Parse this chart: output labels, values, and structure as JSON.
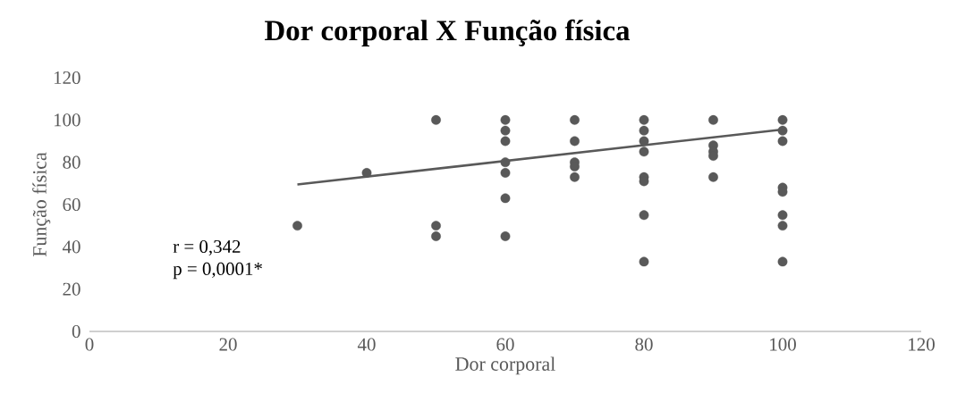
{
  "chart_data": {
    "type": "scatter",
    "title": "Dor corporal X Função física",
    "xlabel": "Dor corporal",
    "ylabel": "Função física",
    "xlim": [
      0,
      120
    ],
    "xticks": [
      0,
      20,
      40,
      60,
      80,
      100,
      120
    ],
    "ylim": [
      0,
      120
    ],
    "yticks": [
      0,
      20,
      40,
      60,
      80,
      100,
      120
    ],
    "grid": false,
    "annotations": [
      "r = 0,342",
      "p = 0,0001*"
    ],
    "series": [
      {
        "marker": "circle",
        "color": "#595959",
        "x": [
          30,
          40,
          50,
          50,
          50,
          60,
          60,
          60,
          60,
          60,
          60,
          60,
          70,
          70,
          70,
          70,
          70,
          80,
          80,
          80,
          80,
          80,
          80,
          80,
          80,
          90,
          90,
          90,
          90,
          90,
          100,
          100,
          100,
          100,
          100,
          100,
          100,
          100
        ],
        "values": [
          50,
          75,
          100,
          50,
          45,
          100,
          95,
          90,
          80,
          75,
          63,
          45,
          100,
          90,
          80,
          78,
          73,
          100,
          95,
          90,
          85,
          73,
          71,
          55,
          33,
          100,
          88,
          85,
          83,
          73,
          100,
          95,
          90,
          68,
          66,
          55,
          50,
          33
        ]
      },
      {
        "type": "line",
        "marker": "none",
        "color": "#595959",
        "x": [
          30,
          100
        ],
        "values": [
          69.5,
          95.5
        ]
      }
    ]
  }
}
